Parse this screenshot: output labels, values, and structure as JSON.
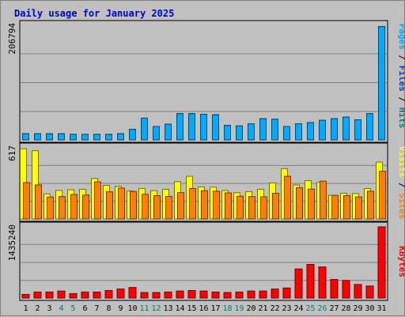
{
  "chart_data": {
    "title": "Daily usage for January 2025",
    "type": "bar",
    "categories": [
      "1",
      "2",
      "3",
      "4",
      "5",
      "6",
      "7",
      "8",
      "9",
      "10",
      "11",
      "12",
      "13",
      "14",
      "15",
      "16",
      "17",
      "18",
      "19",
      "20",
      "21",
      "22",
      "23",
      "24",
      "25",
      "26",
      "27",
      "28",
      "29",
      "30",
      "31"
    ],
    "weekend_days": [
      "4",
      "5",
      "11",
      "12",
      "18",
      "19",
      "25",
      "26"
    ],
    "panels": [
      {
        "name": "hits-files-pages",
        "max_label": "206794",
        "ylim": [
          0,
          206794
        ],
        "series": [
          {
            "name": "Pages",
            "color": "#00aaff",
            "values": [
              11000,
              11000,
              11000,
              11000,
              10000,
              10000,
              10000,
              10000,
              11000,
              19000,
              39000,
              24000,
              28000,
              47000,
              47000,
              46000,
              45000,
              26000,
              25000,
              29000,
              38000,
              37000,
              24000,
              29000,
              31000,
              35000,
              38000,
              41000,
              36000,
              47000,
              203000
            ]
          },
          {
            "name": "Files",
            "color": "#0040c0",
            "values": [
              11000,
              11000,
              11000,
              11000,
              10000,
              10000,
              10000,
              10000,
              11000,
              19000,
              39000,
              24000,
              28000,
              47000,
              47000,
              46000,
              45000,
              26000,
              25000,
              29000,
              38000,
              37000,
              24000,
              29000,
              31000,
              35000,
              38000,
              41000,
              36000,
              47000,
              203000
            ]
          },
          {
            "name": "Hits",
            "color": "#00806f",
            "values": [
              11000,
              11000,
              11000,
              11000,
              10000,
              10000,
              10000,
              10000,
              11000,
              19000,
              39000,
              24000,
              28000,
              47000,
              47000,
              46000,
              45000,
              26000,
              25000,
              29000,
              38000,
              37000,
              24000,
              29000,
              31000,
              35000,
              38000,
              41000,
              36000,
              47000,
              203000
            ]
          }
        ]
      },
      {
        "name": "visits-sites",
        "max_label": "617",
        "ylim": [
          0,
          617
        ],
        "series": [
          {
            "name": "Visits",
            "color": "#ffff00",
            "values": [
              602,
              585,
              215,
              245,
              250,
              255,
              348,
              288,
              280,
              240,
              262,
              243,
              254,
              320,
              366,
              275,
              273,
              244,
              225,
              235,
              255,
              309,
              431,
              291,
              329,
              313,
              203,
              221,
              218,
              261,
              488
            ]
          },
          {
            "name": "Sites",
            "color": "#ff8000",
            "values": [
              312,
              292,
              188,
              192,
              210,
              205,
              318,
              233,
              265,
              236,
              212,
              200,
              194,
              226,
              261,
              242,
              238,
              224,
              195,
              192,
              190,
              220,
              366,
              269,
              256,
              324,
              203,
              200,
              189,
              238,
              409
            ]
          }
        ]
      },
      {
        "name": "kbytes",
        "max_label": "1435240",
        "ylim": [
          0,
          1435240
        ],
        "series": [
          {
            "name": "KBytes",
            "color": "#ff0000",
            "values": [
              72000,
              120000,
              120000,
              140000,
              88000,
              120000,
              120000,
              150000,
              180000,
              210000,
              110000,
              110000,
              120000,
              140000,
              150000,
              140000,
              120000,
              110000,
              120000,
              140000,
              140000,
              180000,
              200000,
              580000,
              670000,
              620000,
              370000,
              350000,
              270000,
              240000,
              1420000
            ]
          }
        ]
      }
    ],
    "separator": "/"
  }
}
